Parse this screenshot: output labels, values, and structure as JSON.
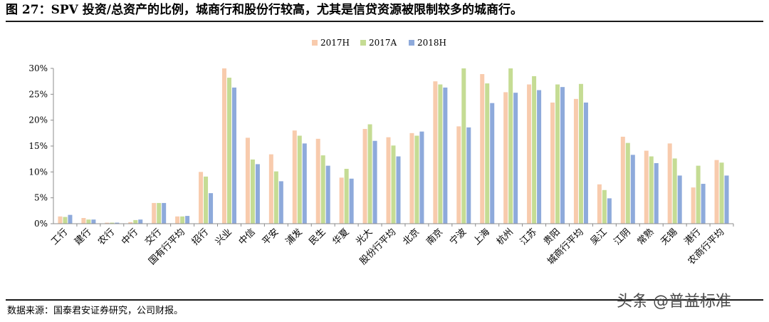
{
  "title": "图 27：SPV 投资/总资产的比例，城商行和股份行较高，尤其是信贷资源被限制较多的城商行。",
  "source": "数据来源：国泰君安证券研究，公司财报。",
  "watermark": "头条 @普益标准",
  "chart_data": {
    "type": "bar",
    "title": "",
    "xlabel": "",
    "ylabel": "",
    "ylim": [
      0,
      30
    ],
    "yticks": [
      "0%",
      "5%",
      "10%",
      "15%",
      "20%",
      "25%",
      "30%"
    ],
    "grid": false,
    "legend": "top-center",
    "categories": [
      "工行",
      "建行",
      "农行",
      "中行",
      "交行",
      "国有行平均",
      "招行",
      "兴业",
      "中信",
      "平安",
      "浦发",
      "民生",
      "华夏",
      "光大",
      "股份行平均",
      "北京",
      "南京",
      "宁波",
      "上海",
      "杭州",
      "江苏",
      "贵阳",
      "城商行平均",
      "吴江",
      "江阴",
      "常熟",
      "无锡",
      "港行",
      "农商行平均"
    ],
    "series": [
      {
        "name": "2017H",
        "color": "#F8CBAD",
        "values": [
          1.4,
          1.1,
          0.2,
          0.3,
          4.0,
          1.4,
          10.0,
          30.0,
          16.6,
          13.4,
          18.0,
          16.4,
          8.9,
          18.3,
          16.7,
          17.5,
          27.5,
          18.8,
          28.9,
          25.4,
          26.9,
          23.4,
          24.1,
          7.6,
          16.8,
          14.1,
          15.5,
          7.0,
          12.3
        ]
      },
      {
        "name": "2017A",
        "color": "#C5DC94",
        "values": [
          1.3,
          0.8,
          0.2,
          0.7,
          4.0,
          1.4,
          9.1,
          28.2,
          12.4,
          10.1,
          17.0,
          13.2,
          10.6,
          19.2,
          15.1,
          17.0,
          26.9,
          30.0,
          27.1,
          30.0,
          28.5,
          26.9,
          27.0,
          6.5,
          15.6,
          13.0,
          12.6,
          11.2,
          11.8
        ]
      },
      {
        "name": "2018H",
        "color": "#8EAADB",
        "values": [
          1.7,
          0.8,
          0.2,
          0.8,
          4.0,
          1.5,
          5.9,
          26.3,
          11.5,
          8.2,
          15.5,
          11.2,
          8.7,
          16.0,
          13.0,
          17.8,
          26.3,
          18.6,
          23.3,
          25.3,
          25.8,
          26.4,
          23.4,
          4.9,
          13.3,
          11.7,
          9.3,
          7.7,
          9.3
        ]
      }
    ]
  }
}
